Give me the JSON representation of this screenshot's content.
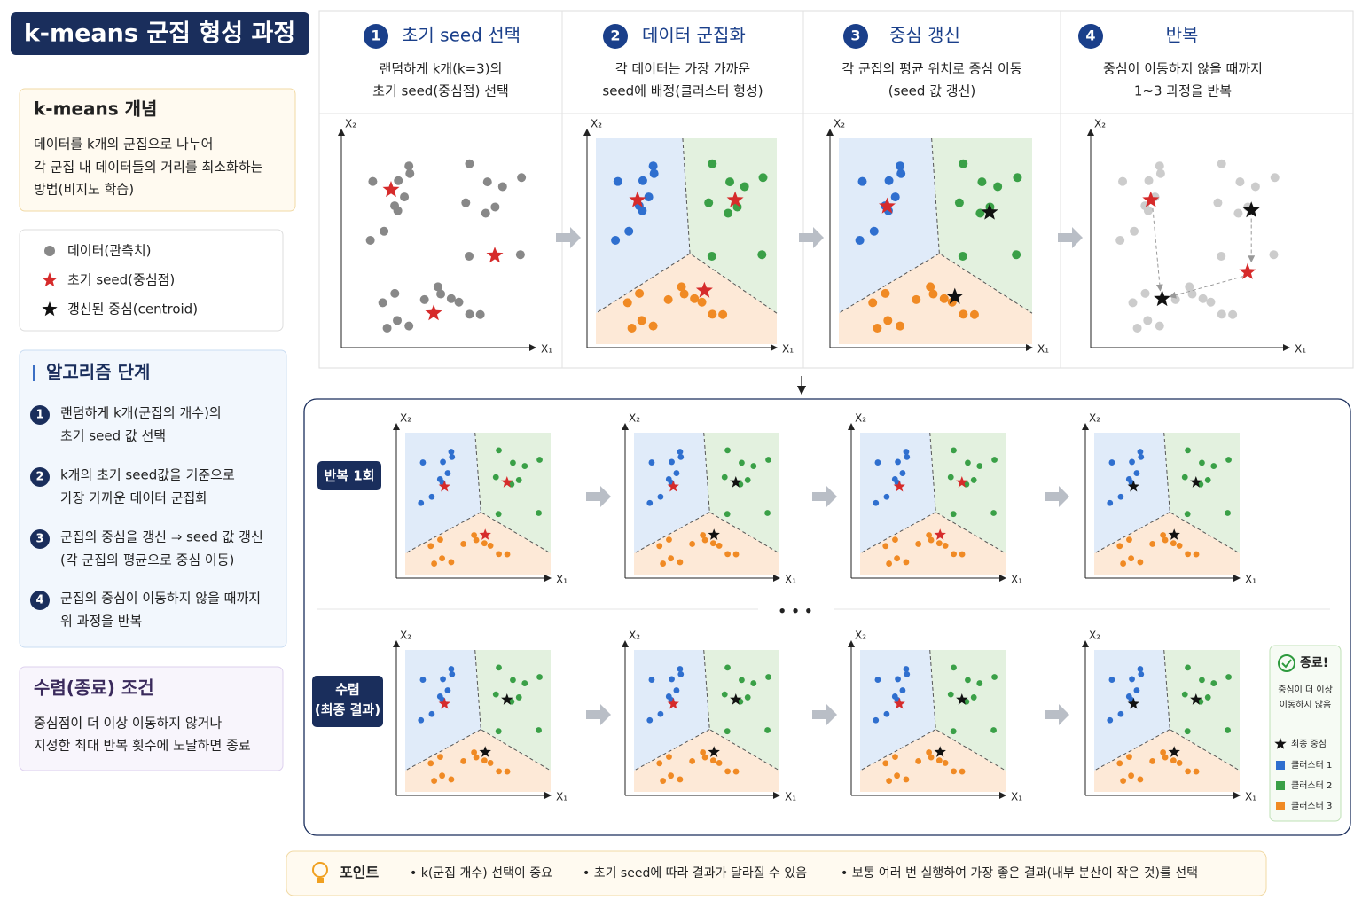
{
  "header": {
    "title": "k-means 군집 형성 과정"
  },
  "concept": {
    "title": "k-means 개념",
    "lines": [
      "데이터를 k개의 군집으로 나누어",
      "각 군집 내 데이터들의 거리를 최소화하는",
      "방법(비지도 학습)"
    ]
  },
  "legend": {
    "items": [
      "데이터(관측치)",
      "초기 seed(중심점)",
      "갱신된 중심(centroid)"
    ]
  },
  "algorithm": {
    "title": "알고리즘 단계",
    "steps": [
      {
        "number": "1",
        "lines": [
          "랜덤하게 k개(군집의 개수)의",
          "초기 seed 값 선택"
        ]
      },
      {
        "number": "2",
        "lines": [
          "k개의 초기 seed값을 기준으로",
          "가장 가까운 데이터 군집화"
        ]
      },
      {
        "number": "3",
        "lines": [
          "군집의 중심을 갱신 ⇒ seed 값 갱신",
          "(각 군집의 평균으로 중심 이동)"
        ]
      },
      {
        "number": "4",
        "lines": [
          "군집의 중심이 이동하지 않을 때까지",
          "위 과정을 반복"
        ]
      }
    ]
  },
  "convergence": {
    "title": "수렴(종료) 조건",
    "lines": [
      "중심점이 더 이상 이동하지 않거나",
      "지정한 최대 반복 횟수에 도달하면 종료"
    ]
  },
  "stages": [
    {
      "number": "1",
      "title": "초기 seed 선택",
      "lines": [
        "랜덤하게 k개(k=3)의",
        "초기 seed(중심점) 선택"
      ]
    },
    {
      "number": "2",
      "title": "데이터 군집화",
      "lines": [
        "각 데이터는 가장 가까운",
        "seed에 배정(클러스터 형성)"
      ]
    },
    {
      "number": "3",
      "title": "중심 갱신",
      "lines": [
        "각 군집의 평균 위치로 중심 이동",
        "(seed 값 갱신)"
      ]
    },
    {
      "number": "4",
      "title": "반복",
      "lines": [
        "중심이 이동하지 않을 때까지",
        "1~3 과정을 반복"
      ]
    }
  ],
  "axis_labels": {
    "x": "X₁",
    "y": "X₂"
  },
  "iterations": {
    "row1_label": "반복 1회",
    "row2_label": [
      "수렴",
      "(최종 결과)"
    ],
    "ellipsis": "• • •"
  },
  "final_legend": {
    "title": "종료!",
    "lines": [
      "중심이 더 이상",
      "이동하지 않음"
    ],
    "items": [
      "최종 중심",
      "클러스터 1",
      "클러스터 2",
      "클러스터 3"
    ]
  },
  "point": {
    "title": "포인트",
    "items": [
      "• k(군집 개수) 선택이 중요",
      "• 초기 seed에 따라 결과가 달라질 수 있음",
      "• 보통 여러 번 실행하여 가장 좋은 결과(내부 분산이 작은 것)를 선택"
    ]
  }
}
